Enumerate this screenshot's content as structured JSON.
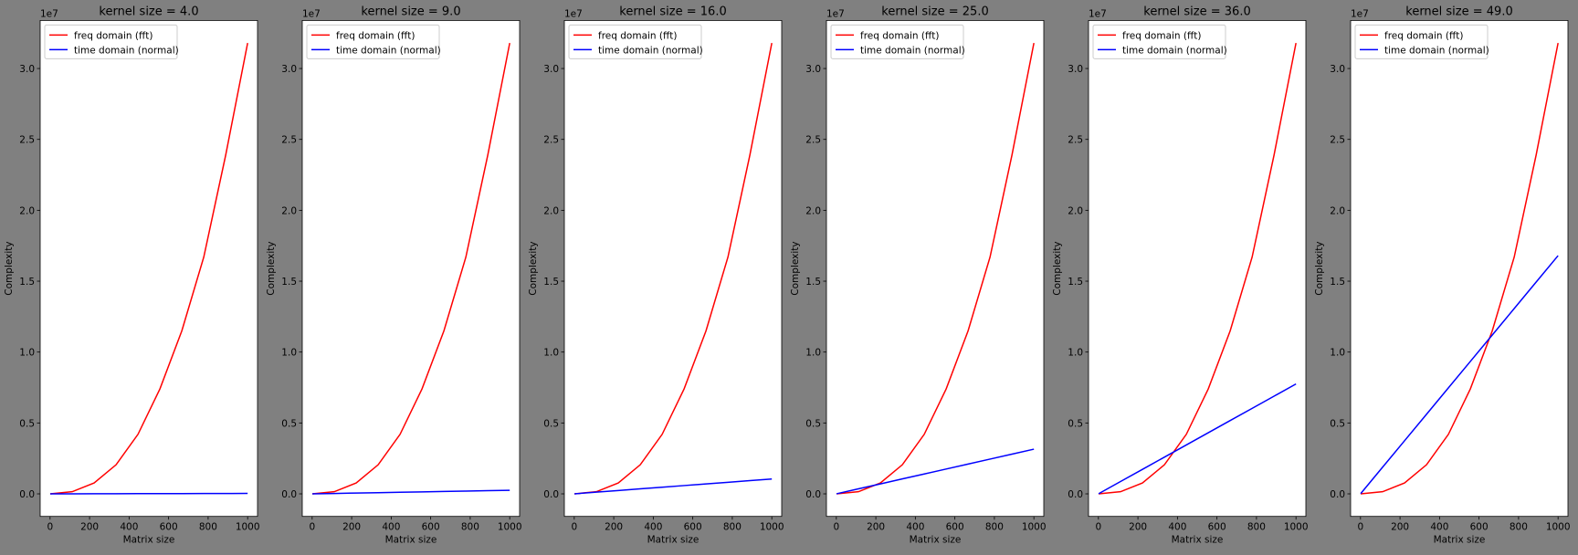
{
  "chart_data": [
    {
      "type": "line",
      "title": "kernel size = 4.0",
      "xlabel": "Matrix size",
      "ylabel": "Complexity",
      "y_offset_label": "1e7",
      "legend_position": "top-left",
      "x": [
        1,
        112,
        223,
        334,
        445,
        556,
        667,
        778,
        889,
        1000
      ],
      "series": [
        {
          "name": "freq domain (fft)",
          "color": "#ff0000",
          "values": [
            0,
            150000,
            770000,
            2050000,
            4200000,
            7400000,
            11500000,
            16700000,
            23900000,
            31800000
          ]
        },
        {
          "name": "time domain (normal)",
          "color": "#0000ff",
          "values": [
            30,
            3300,
            6700,
            10000,
            13300,
            16700,
            20000,
            23300,
            26700,
            30000
          ]
        }
      ],
      "xlim": [
        -50,
        1050
      ],
      "ylim": [
        -1590000,
        33390000
      ],
      "xticks": [
        "0",
        "200",
        "400",
        "600",
        "800",
        "1000"
      ],
      "yticks": [
        "0.0",
        "0.5",
        "1.0",
        "1.5",
        "2.0",
        "2.5",
        "3.0"
      ]
    },
    {
      "type": "line",
      "title": "kernel size = 9.0",
      "xlabel": "Matrix size",
      "ylabel": "Complexity",
      "y_offset_label": "1e7",
      "legend_position": "top-left",
      "x": [
        1,
        112,
        223,
        334,
        445,
        556,
        667,
        778,
        889,
        1000
      ],
      "series": [
        {
          "name": "freq domain (fft)",
          "color": "#ff0000",
          "values": [
            0,
            150000,
            770000,
            2050000,
            4200000,
            7400000,
            11500000,
            16700000,
            23900000,
            31800000
          ]
        },
        {
          "name": "time domain (normal)",
          "color": "#0000ff",
          "values": [
            250,
            28000,
            55750,
            83500,
            111250,
            139000,
            166750,
            194500,
            222250,
            250000
          ]
        }
      ],
      "xlim": [
        -50,
        1050
      ],
      "ylim": [
        -1590000,
        33390000
      ],
      "xticks": [
        "0",
        "200",
        "400",
        "600",
        "800",
        "1000"
      ],
      "yticks": [
        "0.0",
        "0.5",
        "1.0",
        "1.5",
        "2.0",
        "2.5",
        "3.0"
      ]
    },
    {
      "type": "line",
      "title": "kernel size = 16.0",
      "xlabel": "Matrix size",
      "ylabel": "Complexity",
      "y_offset_label": "1e7",
      "legend_position": "top-left",
      "x": [
        1,
        112,
        223,
        334,
        445,
        556,
        667,
        778,
        889,
        1000
      ],
      "series": [
        {
          "name": "freq domain (fft)",
          "color": "#ff0000",
          "values": [
            0,
            150000,
            770000,
            2050000,
            4200000,
            7400000,
            11500000,
            16700000,
            23900000,
            31800000
          ]
        },
        {
          "name": "time domain (normal)",
          "color": "#0000ff",
          "values": [
            1050,
            117600,
            234150,
            350700,
            467250,
            583800,
            700350,
            816900,
            933450,
            1050000
          ]
        }
      ],
      "xlim": [
        -50,
        1050
      ],
      "ylim": [
        -1590000,
        33390000
      ],
      "xticks": [
        "0",
        "200",
        "400",
        "600",
        "800",
        "1000"
      ],
      "yticks": [
        "0.0",
        "0.5",
        "1.0",
        "1.5",
        "2.0",
        "2.5",
        "3.0"
      ]
    },
    {
      "type": "line",
      "title": "kernel size = 25.0",
      "xlabel": "Matrix size",
      "ylabel": "Complexity",
      "y_offset_label": "1e7",
      "legend_position": "top-left",
      "x": [
        1,
        112,
        223,
        334,
        445,
        556,
        667,
        778,
        889,
        1000
      ],
      "series": [
        {
          "name": "freq domain (fft)",
          "color": "#ff0000",
          "values": [
            0,
            150000,
            770000,
            2050000,
            4200000,
            7400000,
            11500000,
            16700000,
            23900000,
            31800000
          ]
        },
        {
          "name": "time domain (normal)",
          "color": "#0000ff",
          "values": [
            3150,
            352800,
            702450,
            1052100,
            1401750,
            1751400,
            2101050,
            2450700,
            2800350,
            3150000
          ]
        }
      ],
      "xlim": [
        -50,
        1050
      ],
      "ylim": [
        -1590000,
        33390000
      ],
      "xticks": [
        "0",
        "200",
        "400",
        "600",
        "800",
        "1000"
      ],
      "yticks": [
        "0.0",
        "0.5",
        "1.0",
        "1.5",
        "2.0",
        "2.5",
        "3.0"
      ]
    },
    {
      "type": "line",
      "title": "kernel size = 36.0",
      "xlabel": "Matrix size",
      "ylabel": "Complexity",
      "y_offset_label": "1e7",
      "legend_position": "top-left",
      "x": [
        1,
        112,
        223,
        334,
        445,
        556,
        667,
        778,
        889,
        1000
      ],
      "series": [
        {
          "name": "freq domain (fft)",
          "color": "#ff0000",
          "values": [
            0,
            150000,
            770000,
            2050000,
            4200000,
            7400000,
            11500000,
            16700000,
            23900000,
            31800000
          ]
        },
        {
          "name": "time domain (normal)",
          "color": "#0000ff",
          "values": [
            7750,
            868000,
            1728250,
            2588500,
            3448750,
            4309000,
            5169250,
            6029500,
            6889750,
            7750000
          ]
        }
      ],
      "xlim": [
        -50,
        1050
      ],
      "ylim": [
        -1590000,
        33390000
      ],
      "xticks": [
        "0",
        "200",
        "400",
        "600",
        "800",
        "1000"
      ],
      "yticks": [
        "0.0",
        "0.5",
        "1.0",
        "1.5",
        "2.0",
        "2.5",
        "3.0"
      ]
    },
    {
      "type": "line",
      "title": "kernel size = 49.0",
      "xlabel": "Matrix size",
      "ylabel": "Complexity",
      "y_offset_label": "1e7",
      "legend_position": "top-left",
      "x": [
        1,
        112,
        223,
        334,
        445,
        556,
        667,
        778,
        889,
        1000
      ],
      "series": [
        {
          "name": "freq domain (fft)",
          "color": "#ff0000",
          "values": [
            0,
            150000,
            770000,
            2050000,
            4200000,
            7400000,
            11500000,
            16700000,
            23900000,
            31800000
          ]
        },
        {
          "name": "time domain (normal)",
          "color": "#0000ff",
          "values": [
            16800,
            1881600,
            3746400,
            5611200,
            7476000,
            9340800,
            11205600,
            13070400,
            14935200,
            16800000
          ]
        }
      ],
      "xlim": [
        -50,
        1050
      ],
      "ylim": [
        -1590000,
        33390000
      ],
      "xticks": [
        "0",
        "200",
        "400",
        "600",
        "800",
        "1000"
      ],
      "yticks": [
        "0.0",
        "0.5",
        "1.0",
        "1.5",
        "2.0",
        "2.5",
        "3.0"
      ]
    }
  ]
}
